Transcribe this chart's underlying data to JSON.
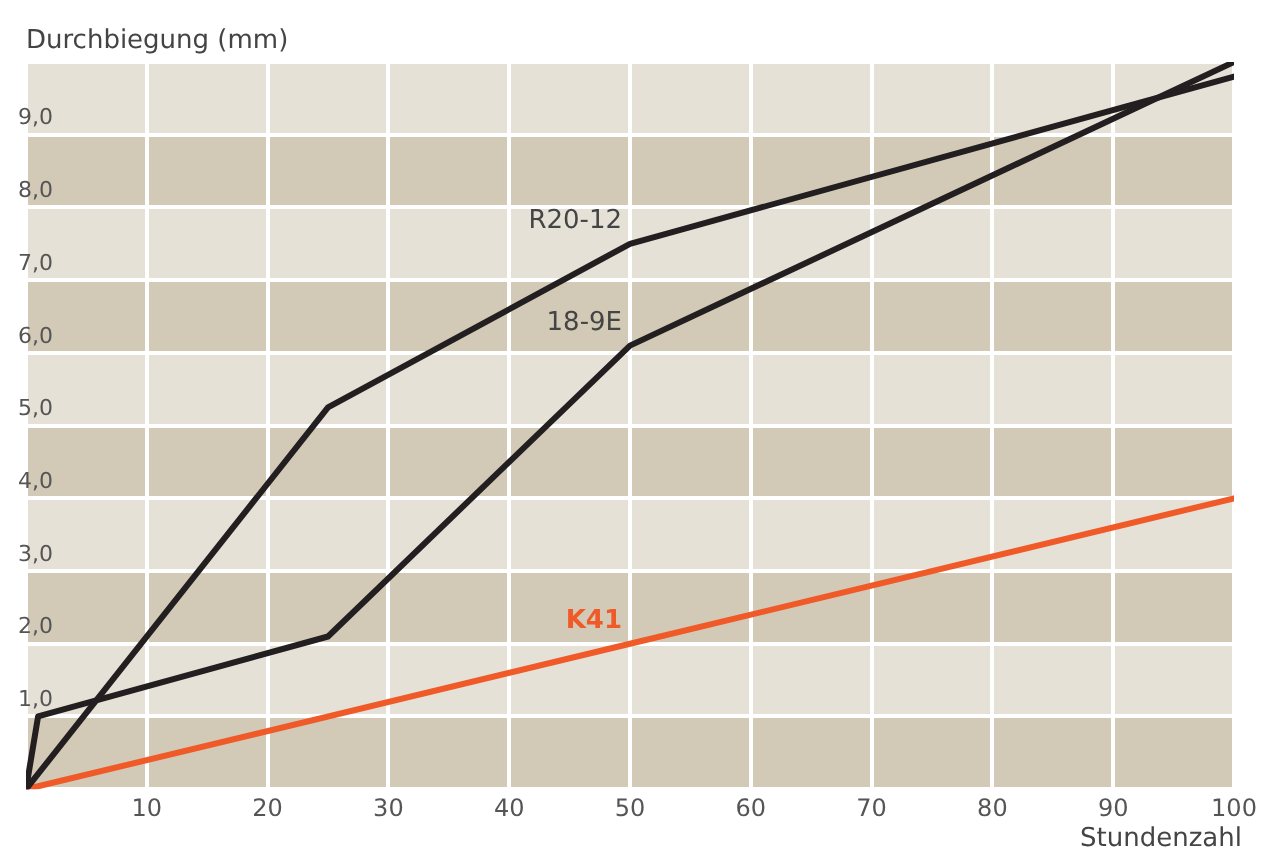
{
  "chart_data": {
    "type": "line",
    "xlabel": "Stundenzahl",
    "ylabel": "Durchbiegung (mm)",
    "xlim": [
      0,
      100
    ],
    "xticks": [
      {
        "value": 0,
        "label": null
      },
      10,
      20,
      30,
      40,
      50,
      60,
      70,
      80,
      90,
      100
    ],
    "ylim": [
      0,
      10
    ],
    "yticks": [
      {
        "value": 0,
        "label": null
      },
      {
        "value": 1,
        "label": "1,0"
      },
      {
        "value": 2,
        "label": "2,0"
      },
      {
        "value": 3,
        "label": "3,0"
      },
      {
        "value": 4,
        "label": "4,0"
      },
      {
        "value": 5,
        "label": "5,0"
      },
      {
        "value": 6,
        "label": "6,0"
      },
      {
        "value": 7,
        "label": "7,0"
      },
      {
        "value": 8,
        "label": "8,0"
      },
      {
        "value": 9,
        "label": "9,0"
      },
      {
        "value": 10,
        "label": null
      }
    ],
    "grid": true,
    "legend": false,
    "marker": "none",
    "line_style": "solid",
    "bands": [
      {
        "axis": "y",
        "from": 0,
        "to": 1,
        "color": "#d2cab6"
      },
      {
        "axis": "y",
        "from": 2,
        "to": 3,
        "color": "#d2cab6"
      },
      {
        "axis": "y",
        "from": 4,
        "to": 5,
        "color": "#d2cab6"
      },
      {
        "axis": "y",
        "from": 6,
        "to": 7,
        "color": "#d2cab6"
      },
      {
        "axis": "y",
        "from": 8,
        "to": 9,
        "color": "#d2cab6"
      }
    ],
    "series": [
      {
        "name": "R20-12",
        "color": "#231f20",
        "x": [
          0,
          25,
          50,
          100
        ],
        "values": [
          0,
          5.25,
          7.5,
          9.8
        ]
      },
      {
        "name": "18-9E",
        "color": "#231f20",
        "x": [
          0,
          1,
          25,
          50,
          100
        ],
        "values": [
          0,
          1.0,
          2.1,
          6.1,
          10.0
        ]
      },
      {
        "name": "K41",
        "color": "#f05a28",
        "x": [
          0,
          50,
          100
        ],
        "values": [
          0,
          2.0,
          4.0
        ]
      }
    ]
  }
}
